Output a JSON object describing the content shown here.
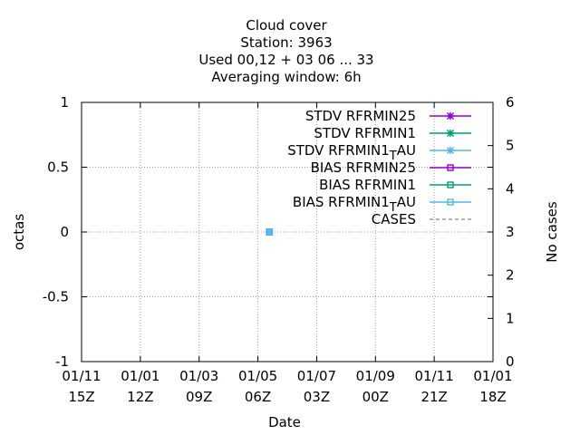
{
  "chart_data": {
    "type": "line",
    "title_lines": [
      "Cloud cover",
      "Station:     3963",
      "Used  00,12  + 03 06 ... 33",
      "Averaging window:  6h"
    ],
    "xlabel": "Date",
    "ylabel": "octas",
    "y2label": "No cases",
    "ylim": [
      -1,
      1
    ],
    "y2lim": [
      0,
      6
    ],
    "yticks": [
      "1",
      "0.5",
      "0",
      "-0.5",
      "-1"
    ],
    "y2ticks": [
      "6",
      "5",
      "4",
      "3",
      "2",
      "1",
      "0"
    ],
    "xticks": [
      {
        "date": "01/11",
        "hour": "15Z"
      },
      {
        "date": "01/01",
        "hour": "12Z"
      },
      {
        "date": "01/03",
        "hour": "09Z"
      },
      {
        "date": "01/05",
        "hour": "06Z"
      },
      {
        "date": "01/07",
        "hour": "03Z"
      },
      {
        "date": "01/09",
        "hour": "00Z"
      },
      {
        "date": "01/11",
        "hour": "21Z"
      },
      {
        "date": "01/01",
        "hour": "18Z"
      }
    ],
    "grid": true,
    "legend_position": "top-right",
    "series": [
      {
        "name": "STDV RFRMIN25",
        "color": "#9400d3",
        "marker": "star",
        "dash": false,
        "points": []
      },
      {
        "name": "STDV RFRMIN1",
        "color": "#009e73",
        "marker": "star",
        "dash": false,
        "points": []
      },
      {
        "name": "STDV RFRMIN1_TAU",
        "label_main": "STDV RFRMIN1",
        "label_sub": "T",
        "label_tail": "AU",
        "color": "#56b4e9",
        "marker": "star",
        "dash": false,
        "points": []
      },
      {
        "name": "BIAS RFRMIN25",
        "color": "#9400d3",
        "marker": "square",
        "dash": false,
        "points": []
      },
      {
        "name": "BIAS RFRMIN1",
        "color": "#009e73",
        "marker": "square",
        "dash": false,
        "points": []
      },
      {
        "name": "BIAS RFRMIN1_TAU",
        "label_main": "BIAS RFRMIN1",
        "label_sub": "T",
        "label_tail": "AU",
        "color": "#56b4e9",
        "marker": "square",
        "dash": false,
        "points": [
          {
            "x_tick_frac": 0.4565,
            "y": 0
          }
        ]
      },
      {
        "name": "CASES",
        "color": "#888888",
        "marker": "none",
        "dash": true,
        "points": []
      }
    ]
  }
}
